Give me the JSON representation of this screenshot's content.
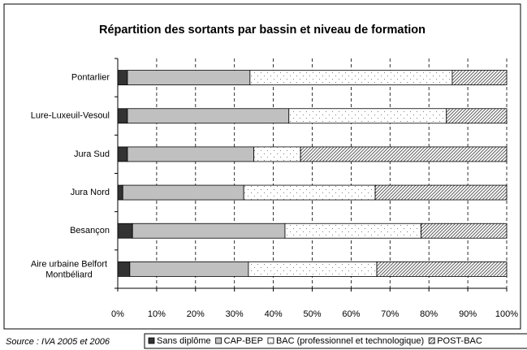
{
  "chart_data": {
    "type": "stacked_barh",
    "title": "Répartition des sortants par bassin et niveau de formation",
    "source": "Source : IVA 2005 et 2006",
    "categories": [
      "Pontarlier",
      "Lure-Luxeuil-Vesoul",
      "Jura Sud",
      "Jura Nord",
      "Besançon",
      "Aire urbaine Belfort Montbéliard"
    ],
    "series": [
      {
        "name": "Sans diplôme",
        "color": "#333333",
        "pattern": "solid",
        "values": [
          2.5,
          2.5,
          2.5,
          1.3,
          3.8,
          3.1
        ]
      },
      {
        "name": "CAP-BEP",
        "color": "#c0c0c0",
        "pattern": "solid",
        "values": [
          31.5,
          41.5,
          32.5,
          31.1,
          39.2,
          30.5
        ]
      },
      {
        "name": "BAC (professionnel et technologique)",
        "color": "#808080",
        "pattern": "dots",
        "values": [
          52,
          40.5,
          12,
          33.8,
          35,
          33
        ]
      },
      {
        "name": "POST-BAC",
        "color": "#606060",
        "pattern": "hatch",
        "values": [
          14,
          15.5,
          53,
          33.8,
          22,
          33.4
        ]
      }
    ],
    "xlim": [
      0,
      100
    ],
    "xticks": [
      {
        "value": 0,
        "label": "0%"
      },
      {
        "value": 10,
        "label": "10%"
      },
      {
        "value": 20,
        "label": "20%"
      },
      {
        "value": 30,
        "label": "30%"
      },
      {
        "value": 40,
        "label": "40%"
      },
      {
        "value": 50,
        "label": "50%"
      },
      {
        "value": 60,
        "label": "60%"
      },
      {
        "value": 70,
        "label": "70%"
      },
      {
        "value": 80,
        "label": "80%"
      },
      {
        "value": 90,
        "label": "90%"
      },
      {
        "value": 100,
        "label": "100%"
      }
    ],
    "grid": true,
    "legend": "bottom"
  }
}
